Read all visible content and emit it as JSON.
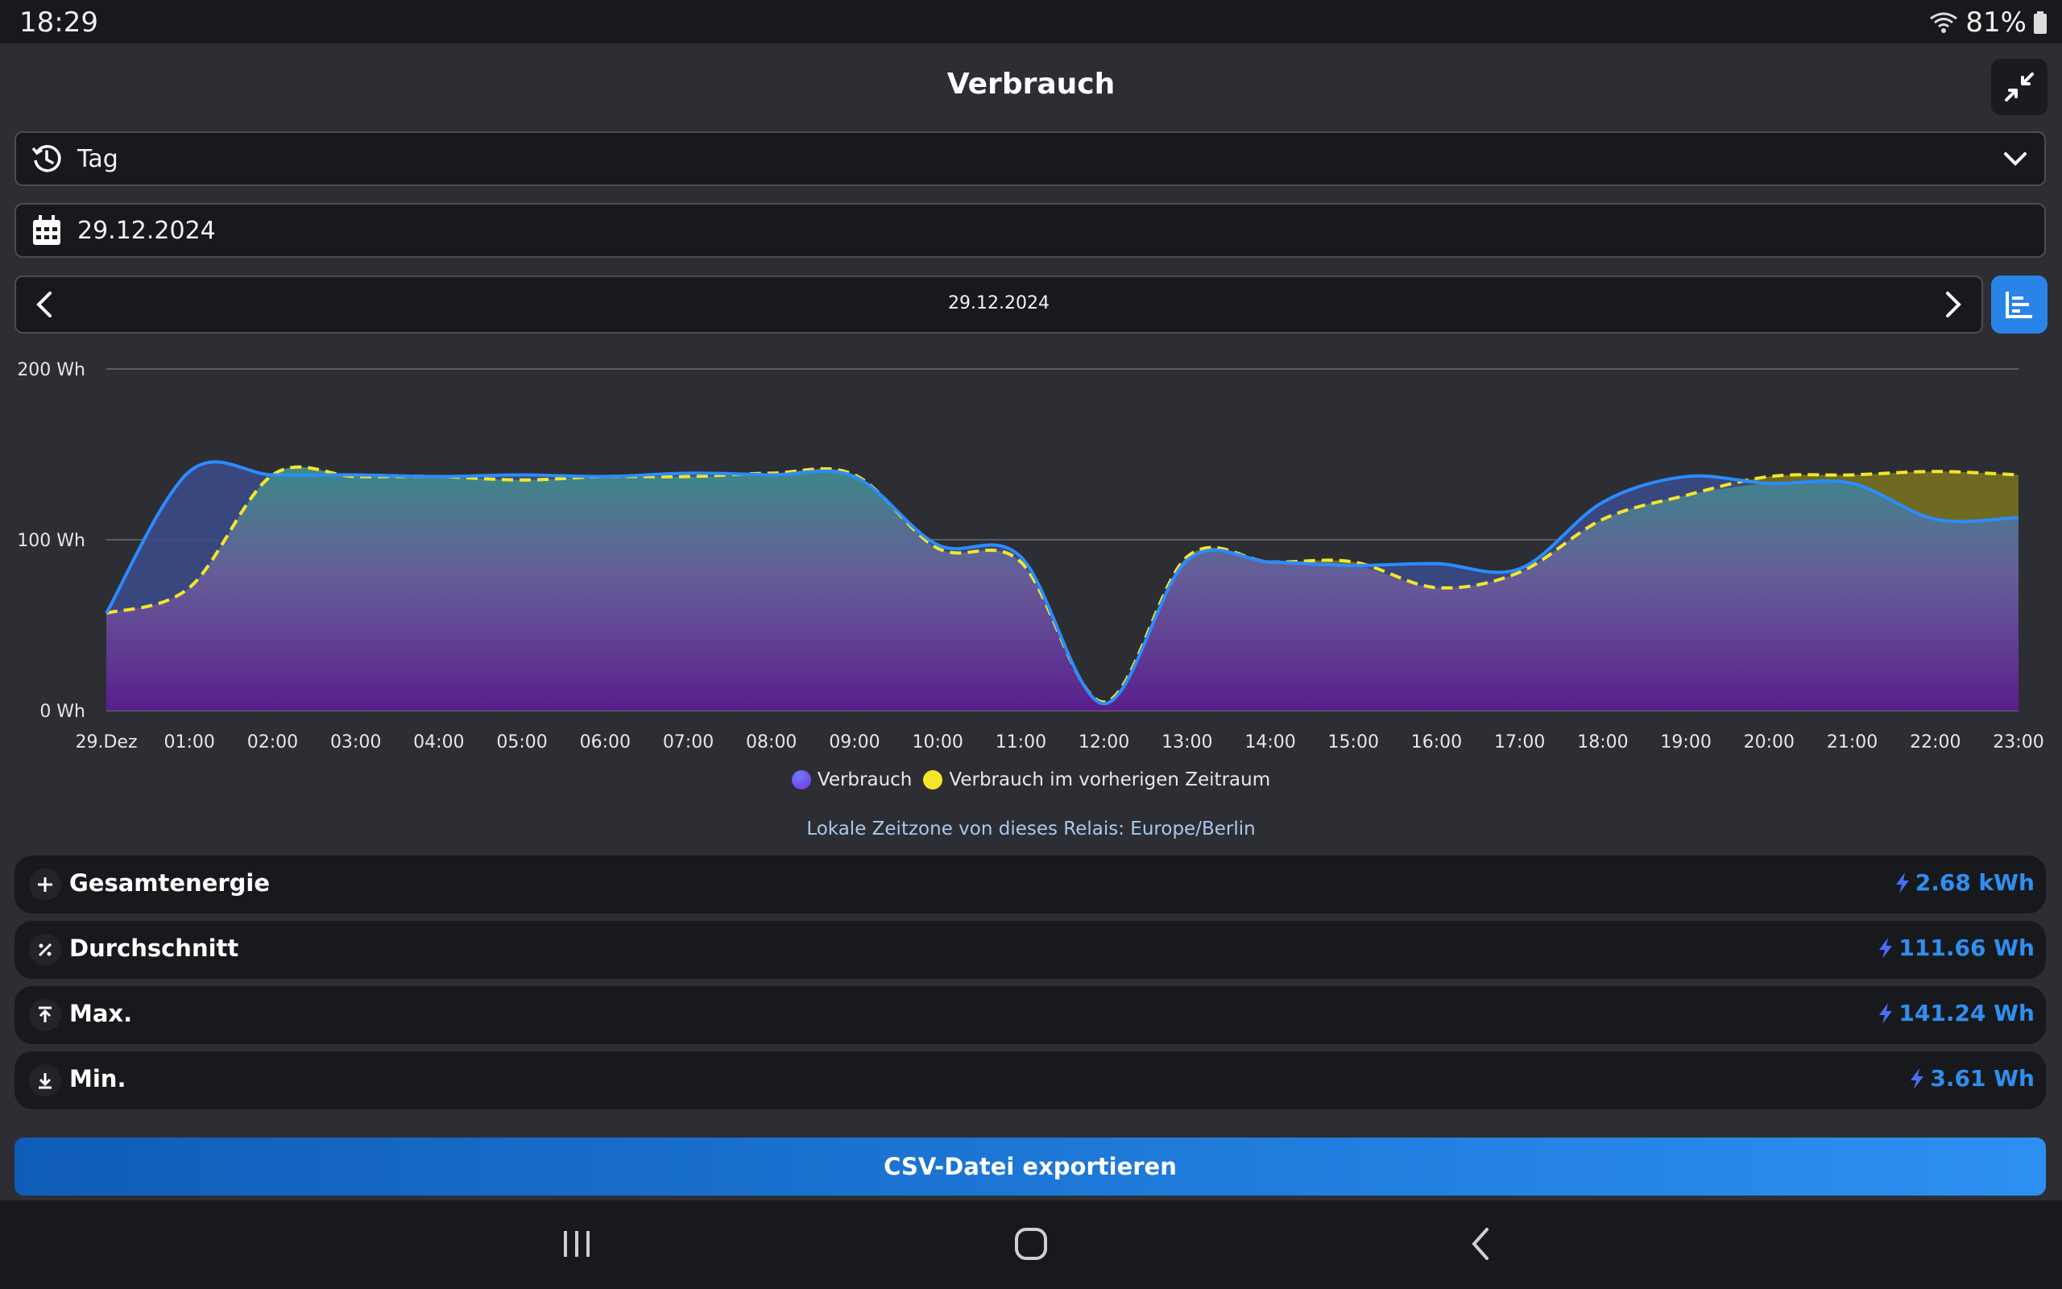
{
  "status": {
    "time": "18:29",
    "battery": "81%"
  },
  "header": {
    "title": "Verbrauch"
  },
  "period_select": {
    "value": "Tag"
  },
  "date_field": {
    "value": "29.12.2024"
  },
  "range_nav": {
    "label": "29.12.2024"
  },
  "chart_data": {
    "type": "area",
    "x": [
      "29.Dez",
      "01:00",
      "02:00",
      "03:00",
      "04:00",
      "05:00",
      "06:00",
      "07:00",
      "08:00",
      "09:00",
      "10:00",
      "11:00",
      "12:00",
      "13:00",
      "14:00",
      "15:00",
      "16:00",
      "17:00",
      "18:00",
      "19:00",
      "20:00",
      "21:00",
      "22:00",
      "23:00"
    ],
    "yticks": [
      "200 Wh",
      "100 Wh",
      "0 Wh"
    ],
    "ylim": [
      0,
      200
    ],
    "grid": true,
    "legend_position": "bottom",
    "series": [
      {
        "name": "Verbrauch",
        "color": "#2b8cff",
        "values": [
          57,
          140,
          138,
          138,
          137,
          138,
          137,
          139,
          138,
          137,
          97,
          90,
          4,
          88,
          87,
          85,
          86,
          83,
          122,
          137,
          133,
          133,
          112,
          113
        ]
      },
      {
        "name": "Verbrauch im vorherigen Zeitraum",
        "color": "#f5e52a",
        "values": [
          57,
          72,
          138,
          137,
          137,
          135,
          137,
          137,
          139,
          138,
          95,
          87,
          5,
          90,
          87,
          87,
          72,
          81,
          112,
          126,
          137,
          138,
          140,
          138
        ]
      }
    ]
  },
  "timezone_note": "Lokale Zeitzone von dieses Relais: Europe/Berlin",
  "stats": [
    {
      "label": "Gesamtenergie",
      "value": "2.68 kWh",
      "icon": "plus-icon"
    },
    {
      "label": "Durchschnitt",
      "value": "111.66 Wh",
      "icon": "percent-icon"
    },
    {
      "label": "Max.",
      "value": "141.24 Wh",
      "icon": "max-icon"
    },
    {
      "label": "Min.",
      "value": "3.61 Wh",
      "icon": "min-icon"
    }
  ],
  "export_label": "CSV-Datei exportieren"
}
